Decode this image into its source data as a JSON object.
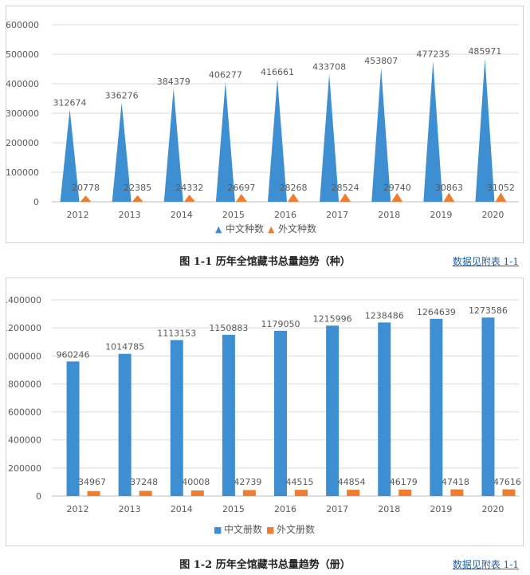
{
  "colors": {
    "primary": "#3e8fd1",
    "secondary": "#ed7d31",
    "grid": "#d9d9d9",
    "text": "#595959"
  },
  "chart_data": [
    {
      "type": "bar",
      "mark_style": "triangle",
      "categories": [
        "2012",
        "2013",
        "2014",
        "2015",
        "2016",
        "2017",
        "2018",
        "2019",
        "2020"
      ],
      "series": [
        {
          "name": "中文种数",
          "legend_symbol": "▲",
          "values": [
            312674,
            336276,
            384379,
            406277,
            416661,
            433708,
            453807,
            477235,
            485971
          ]
        },
        {
          "name": "外文种数",
          "legend_symbol": "▲",
          "values": [
            20778,
            22385,
            24332,
            26697,
            28268,
            28524,
            29740,
            30863,
            31052
          ]
        }
      ],
      "yticks": [
        "0",
        "100000",
        "200000",
        "300000",
        "400000",
        "500000",
        "600000"
      ],
      "ylim": [
        0,
        600000
      ],
      "legend_position": "bottom",
      "grid": true,
      "caption": "图 1-1  历年全馆藏书总量趋势（种）",
      "source_link": "数据见附表 1-1"
    },
    {
      "type": "bar",
      "mark_style": "rect",
      "categories": [
        "2012",
        "2013",
        "2014",
        "2015",
        "2016",
        "2017",
        "2018",
        "2019",
        "2020"
      ],
      "series": [
        {
          "name": "中文册数",
          "legend_symbol": "■",
          "values": [
            960246,
            1014785,
            1113153,
            1150883,
            1179050,
            1215996,
            1238486,
            1264639,
            1273586
          ]
        },
        {
          "name": "外文册数",
          "legend_symbol": "■",
          "values": [
            34967,
            37248,
            40008,
            42739,
            44515,
            44854,
            46179,
            47418,
            47616
          ]
        }
      ],
      "yticks": [
        "0",
        "200000",
        "400000",
        "600000",
        "800000",
        "1000000",
        "1200000",
        "1400000"
      ],
      "ylim": [
        0,
        1400000
      ],
      "legend_position": "bottom",
      "grid": true,
      "caption": "图 1-2  历年全馆藏书总量趋势（册）",
      "source_link": "数据见附表 1-1"
    }
  ]
}
